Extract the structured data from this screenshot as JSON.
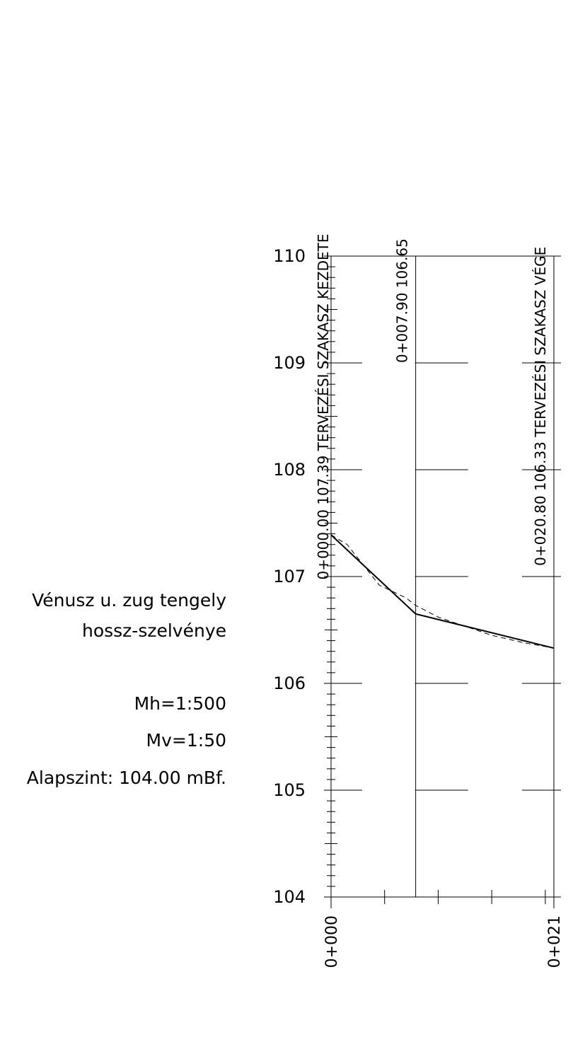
{
  "title_block": {
    "line1": "Vénusz u. zug tengely",
    "line2": "hossz-szelvénye",
    "mh": "Mh=1:500",
    "mv": "Mv=1:50",
    "alapszint": "Alapszint: 104.00   mBf."
  },
  "chart_data": {
    "type": "line",
    "title": "Vénusz u. zug tengely hossz-szelvénye",
    "xlabel": "",
    "ylabel": "",
    "xlim": [
      0,
      20.8
    ],
    "ylim": [
      104,
      110
    ],
    "y_ticks": [
      104,
      105,
      106,
      107,
      108,
      109,
      110
    ],
    "y_tick_labels": [
      "104",
      "105",
      "106",
      "107",
      "108",
      "109",
      "110"
    ],
    "x_tick_labels": [
      {
        "x": 0.0,
        "label": "0+000"
      },
      {
        "x": 20.8,
        "label": "0+021"
      }
    ],
    "x_minor_ticks": [
      0,
      5,
      10,
      15,
      20
    ],
    "stations": [
      {
        "x": 0.0,
        "label": "0+000.00 107.39 TERVEZÉSI SZAKASZ KEZDETE"
      },
      {
        "x": 7.9,
        "label": "0+007.90 106.65"
      },
      {
        "x": 20.8,
        "label": "0+020.80 106.33 TERVEZÉSI SZAKASZ VÉGE"
      }
    ],
    "series": [
      {
        "style": "solid",
        "x": [
          0.0,
          7.9,
          20.8
        ],
        "y": [
          107.39,
          106.65,
          106.33
        ]
      },
      {
        "style": "dashed",
        "x": [
          0.0,
          1.5,
          4.5,
          7.0,
          7.9,
          10.0,
          15.0,
          18.0,
          20.8
        ],
        "y": [
          107.39,
          107.3,
          106.92,
          106.8,
          106.73,
          106.62,
          106.45,
          106.38,
          106.33
        ]
      }
    ]
  }
}
